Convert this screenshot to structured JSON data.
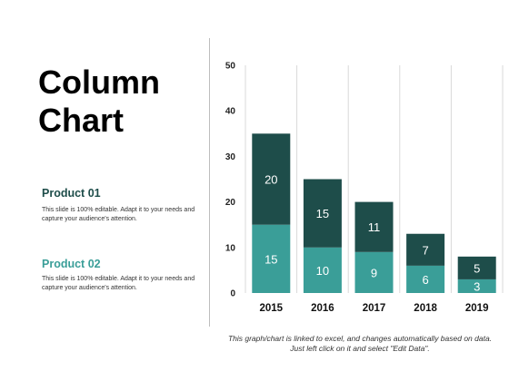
{
  "title_lines": [
    "Column",
    "Chart"
  ],
  "products": [
    {
      "name": "Product 01",
      "description": "This slide is 100% editable. Adapt it to your needs and capture your audience's attention."
    },
    {
      "name": "Product 02",
      "description": "This slide is 100% editable. Adapt it to your needs and capture your audience's attention."
    }
  ],
  "footnote": "This graph/chart is linked to excel, and changes automatically based on data. Just left click on it and select \"Edit Data\".",
  "colors": {
    "product01": "#1e4d4a",
    "product02": "#3a9e98",
    "product01_label": "#1e4d4a",
    "product02_label": "#3a9e98",
    "gridline": "#d9d9d9"
  },
  "chart_data": {
    "type": "bar",
    "stacked": true,
    "categories": [
      "2015",
      "2016",
      "2017",
      "2018",
      "2019"
    ],
    "series": [
      {
        "values": [
          15,
          10,
          9,
          6,
          3
        ]
      },
      {
        "values": [
          20,
          15,
          11,
          7,
          5
        ]
      }
    ],
    "y_ticks": [
      "0",
      "10",
      "20",
      "30",
      "40",
      "50"
    ],
    "ylim": [
      0,
      50
    ],
    "grid": true,
    "legend": "none"
  }
}
